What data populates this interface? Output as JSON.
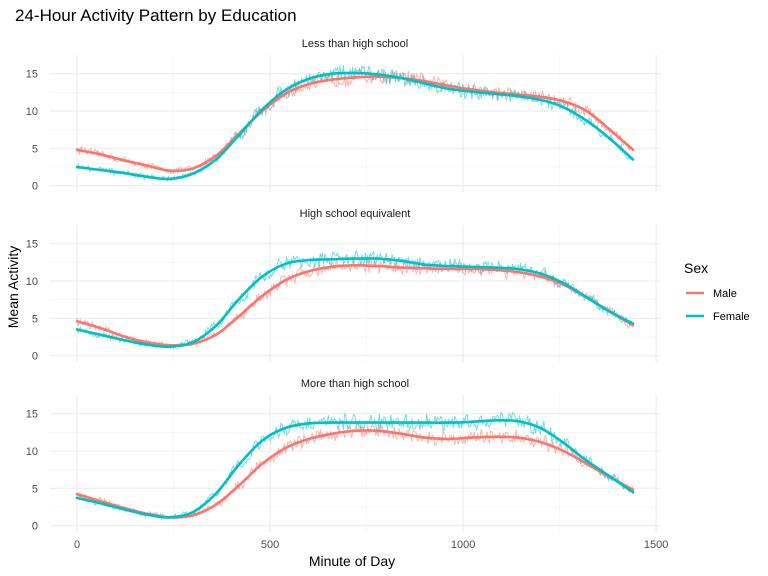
{
  "chart_data": {
    "type": "line",
    "title": "24-Hour Activity Pattern by Education",
    "xlabel": "Minute of Day",
    "ylabel": "Mean Activity",
    "xlim": [
      0,
      1440
    ],
    "ylim": [
      0,
      17
    ],
    "xticks": [
      0,
      500,
      1000,
      1500
    ],
    "yticks": [
      0,
      5,
      10,
      15
    ],
    "grid": true,
    "legend": {
      "title": "Sex",
      "position": "right"
    },
    "facets": [
      {
        "label": "Less than high school",
        "series": [
          {
            "name": "Male",
            "color": "#F8766D",
            "x": [
              0,
              60,
              120,
              180,
              240,
              300,
              360,
              420,
              480,
              540,
              600,
              660,
              720,
              780,
              840,
              900,
              960,
              1020,
              1080,
              1140,
              1200,
              1260,
              1320,
              1380,
              1440
            ],
            "y": [
              4.8,
              4.2,
              3.4,
              2.7,
              2.0,
              2.3,
              4.0,
              7.0,
              10.0,
              12.3,
              13.6,
              14.2,
              14.5,
              14.6,
              14.4,
              14.0,
              13.4,
              12.9,
              12.5,
              12.2,
              11.9,
              11.3,
              10.0,
              7.5,
              4.8
            ]
          },
          {
            "name": "Female",
            "color": "#00BFC4",
            "x": [
              0,
              60,
              120,
              180,
              240,
              300,
              360,
              420,
              480,
              540,
              600,
              660,
              720,
              780,
              840,
              900,
              960,
              1020,
              1080,
              1140,
              1200,
              1260,
              1320,
              1380,
              1440
            ],
            "y": [
              2.5,
              2.1,
              1.7,
              1.2,
              0.9,
              1.6,
              3.5,
              6.8,
              10.2,
              12.8,
              14.3,
              15.0,
              15.1,
              14.9,
              14.4,
              13.7,
              13.0,
              12.6,
              12.3,
              12.0,
              11.5,
              10.5,
              8.7,
              6.3,
              3.5
            ]
          }
        ]
      },
      {
        "label": "High school equivalent",
        "series": [
          {
            "name": "Male",
            "color": "#F8766D",
            "x": [
              0,
              60,
              120,
              180,
              240,
              300,
              360,
              420,
              480,
              540,
              600,
              660,
              720,
              780,
              840,
              900,
              960,
              1020,
              1080,
              1140,
              1200,
              1260,
              1320,
              1380,
              1440
            ],
            "y": [
              4.6,
              3.7,
              2.6,
              1.8,
              1.4,
              1.6,
              2.8,
              5.3,
              8.0,
              10.1,
              11.3,
              11.9,
              12.1,
              12.0,
              11.8,
              11.7,
              11.6,
              11.6,
              11.5,
              11.2,
              10.6,
              9.5,
              7.8,
              5.9,
              4.1
            ]
          },
          {
            "name": "Female",
            "color": "#00BFC4",
            "x": [
              0,
              60,
              120,
              180,
              240,
              300,
              360,
              420,
              480,
              540,
              600,
              660,
              720,
              780,
              840,
              900,
              960,
              1020,
              1080,
              1140,
              1200,
              1260,
              1320,
              1380,
              1440
            ],
            "y": [
              3.5,
              2.8,
              2.1,
              1.5,
              1.2,
              1.8,
              4.0,
              7.6,
              10.6,
              12.3,
              12.8,
              12.9,
              13.0,
              13.0,
              12.7,
              12.2,
              12.0,
              11.9,
              11.8,
              11.6,
              11.0,
              9.7,
              7.8,
              5.9,
              4.3
            ]
          }
        ]
      },
      {
        "label": "More than high school",
        "series": [
          {
            "name": "Male",
            "color": "#F8766D",
            "x": [
              0,
              60,
              120,
              180,
              240,
              300,
              360,
              420,
              480,
              540,
              600,
              660,
              720,
              780,
              840,
              900,
              960,
              1020,
              1080,
              1140,
              1200,
              1260,
              1320,
              1380,
              1440
            ],
            "y": [
              4.2,
              3.3,
              2.4,
              1.6,
              1.1,
              1.4,
              2.8,
              5.4,
              8.3,
              10.4,
              11.6,
              12.3,
              12.7,
              12.7,
              12.3,
              11.8,
              11.6,
              11.8,
              11.9,
              11.8,
              11.2,
              10.0,
              8.3,
              6.5,
              4.8
            ]
          },
          {
            "name": "Female",
            "color": "#00BFC4",
            "x": [
              0,
              60,
              120,
              180,
              240,
              300,
              360,
              420,
              480,
              540,
              600,
              660,
              720,
              780,
              840,
              900,
              960,
              1020,
              1080,
              1140,
              1200,
              1260,
              1320,
              1380,
              1440
            ],
            "y": [
              3.7,
              3.0,
              2.2,
              1.5,
              1.1,
              1.8,
              4.3,
              8.2,
              11.4,
              13.1,
              13.7,
              13.8,
              13.8,
              13.8,
              13.8,
              13.8,
              13.8,
              13.9,
              14.1,
              14.0,
              13.1,
              11.1,
              8.7,
              6.6,
              4.5
            ]
          }
        ]
      }
    ]
  }
}
